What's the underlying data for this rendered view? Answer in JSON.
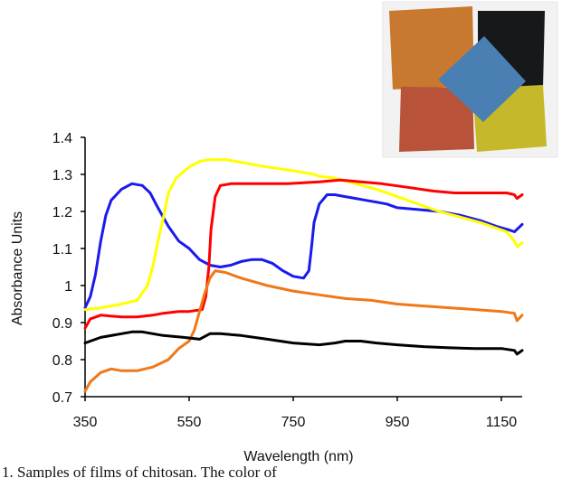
{
  "caption": "1. Samples of films of chitosan. The color of",
  "chart_data": {
    "type": "line",
    "xlabel": "Wavelength (nm)",
    "ylabel": "Absorbance Units",
    "xlim": [
      350,
      1190
    ],
    "ylim": [
      0.7,
      1.4
    ],
    "x_ticks": [
      350,
      550,
      750,
      950,
      1150
    ],
    "y_ticks": [
      0.7,
      0.8,
      0.9,
      1,
      1.1,
      1.2,
      1.3,
      1.4
    ],
    "grid": false,
    "legend": "none",
    "series": [
      {
        "color": "#1a1aee",
        "points": [
          [
            350,
            0.94
          ],
          [
            360,
            0.97
          ],
          [
            370,
            1.03
          ],
          [
            380,
            1.12
          ],
          [
            390,
            1.19
          ],
          [
            400,
            1.23
          ],
          [
            420,
            1.26
          ],
          [
            440,
            1.275
          ],
          [
            460,
            1.27
          ],
          [
            475,
            1.25
          ],
          [
            490,
            1.21
          ],
          [
            510,
            1.16
          ],
          [
            530,
            1.12
          ],
          [
            550,
            1.1
          ],
          [
            570,
            1.07
          ],
          [
            590,
            1.055
          ],
          [
            610,
            1.05
          ],
          [
            630,
            1.055
          ],
          [
            650,
            1.065
          ],
          [
            670,
            1.07
          ],
          [
            690,
            1.07
          ],
          [
            710,
            1.06
          ],
          [
            730,
            1.04
          ],
          [
            750,
            1.025
          ],
          [
            770,
            1.02
          ],
          [
            780,
            1.04
          ],
          [
            785,
            1.1
          ],
          [
            790,
            1.17
          ],
          [
            800,
            1.22
          ],
          [
            815,
            1.245
          ],
          [
            830,
            1.245
          ],
          [
            850,
            1.24
          ],
          [
            870,
            1.235
          ],
          [
            890,
            1.23
          ],
          [
            910,
            1.225
          ],
          [
            930,
            1.22
          ],
          [
            950,
            1.21
          ],
          [
            990,
            1.205
          ],
          [
            1030,
            1.2
          ],
          [
            1070,
            1.19
          ],
          [
            1110,
            1.175
          ],
          [
            1140,
            1.16
          ],
          [
            1165,
            1.15
          ],
          [
            1175,
            1.145
          ],
          [
            1190,
            1.165
          ]
        ]
      },
      {
        "color": "#ffff00",
        "points": [
          [
            350,
            0.935
          ],
          [
            380,
            0.94
          ],
          [
            420,
            0.95
          ],
          [
            450,
            0.96
          ],
          [
            470,
            1.0
          ],
          [
            480,
            1.05
          ],
          [
            490,
            1.12
          ],
          [
            500,
            1.18
          ],
          [
            510,
            1.25
          ],
          [
            525,
            1.29
          ],
          [
            550,
            1.32
          ],
          [
            570,
            1.335
          ],
          [
            590,
            1.34
          ],
          [
            620,
            1.34
          ],
          [
            660,
            1.33
          ],
          [
            700,
            1.32
          ],
          [
            750,
            1.31
          ],
          [
            790,
            1.3
          ],
          [
            800,
            1.295
          ],
          [
            830,
            1.29
          ],
          [
            870,
            1.275
          ],
          [
            910,
            1.26
          ],
          [
            950,
            1.24
          ],
          [
            990,
            1.22
          ],
          [
            1030,
            1.2
          ],
          [
            1070,
            1.185
          ],
          [
            1110,
            1.17
          ],
          [
            1140,
            1.155
          ],
          [
            1160,
            1.145
          ],
          [
            1175,
            1.12
          ],
          [
            1180,
            1.105
          ],
          [
            1190,
            1.115
          ]
        ]
      },
      {
        "color": "#ff0000",
        "points": [
          [
            350,
            0.885
          ],
          [
            360,
            0.91
          ],
          [
            380,
            0.92
          ],
          [
            420,
            0.915
          ],
          [
            450,
            0.915
          ],
          [
            480,
            0.92
          ],
          [
            500,
            0.925
          ],
          [
            530,
            0.93
          ],
          [
            550,
            0.93
          ],
          [
            575,
            0.935
          ],
          [
            582,
            0.97
          ],
          [
            588,
            1.05
          ],
          [
            592,
            1.15
          ],
          [
            600,
            1.24
          ],
          [
            610,
            1.27
          ],
          [
            630,
            1.275
          ],
          [
            680,
            1.275
          ],
          [
            740,
            1.275
          ],
          [
            800,
            1.28
          ],
          [
            840,
            1.285
          ],
          [
            880,
            1.28
          ],
          [
            920,
            1.275
          ],
          [
            970,
            1.265
          ],
          [
            1020,
            1.255
          ],
          [
            1060,
            1.25
          ],
          [
            1100,
            1.25
          ],
          [
            1140,
            1.25
          ],
          [
            1160,
            1.25
          ],
          [
            1175,
            1.245
          ],
          [
            1180,
            1.235
          ],
          [
            1190,
            1.245
          ]
        ]
      },
      {
        "color": "#f07818",
        "points": [
          [
            350,
            0.715
          ],
          [
            360,
            0.74
          ],
          [
            380,
            0.765
          ],
          [
            400,
            0.775
          ],
          [
            420,
            0.77
          ],
          [
            450,
            0.77
          ],
          [
            480,
            0.78
          ],
          [
            510,
            0.8
          ],
          [
            530,
            0.83
          ],
          [
            550,
            0.85
          ],
          [
            560,
            0.88
          ],
          [
            570,
            0.93
          ],
          [
            580,
            0.98
          ],
          [
            590,
            1.02
          ],
          [
            600,
            1.04
          ],
          [
            620,
            1.035
          ],
          [
            650,
            1.02
          ],
          [
            700,
            1.0
          ],
          [
            750,
            0.985
          ],
          [
            800,
            0.975
          ],
          [
            850,
            0.965
          ],
          [
            900,
            0.96
          ],
          [
            950,
            0.95
          ],
          [
            1000,
            0.945
          ],
          [
            1050,
            0.94
          ],
          [
            1100,
            0.935
          ],
          [
            1150,
            0.93
          ],
          [
            1175,
            0.925
          ],
          [
            1180,
            0.905
          ],
          [
            1190,
            0.92
          ]
        ]
      },
      {
        "color": "#000000",
        "points": [
          [
            350,
            0.845
          ],
          [
            380,
            0.86
          ],
          [
            420,
            0.87
          ],
          [
            440,
            0.875
          ],
          [
            460,
            0.875
          ],
          [
            500,
            0.865
          ],
          [
            540,
            0.86
          ],
          [
            570,
            0.855
          ],
          [
            590,
            0.87
          ],
          [
            610,
            0.87
          ],
          [
            650,
            0.865
          ],
          [
            700,
            0.855
          ],
          [
            750,
            0.845
          ],
          [
            800,
            0.84
          ],
          [
            830,
            0.845
          ],
          [
            850,
            0.85
          ],
          [
            880,
            0.85
          ],
          [
            910,
            0.845
          ],
          [
            950,
            0.84
          ],
          [
            1000,
            0.835
          ],
          [
            1050,
            0.832
          ],
          [
            1100,
            0.83
          ],
          [
            1150,
            0.83
          ],
          [
            1175,
            0.825
          ],
          [
            1180,
            0.815
          ],
          [
            1190,
            0.825
          ]
        ]
      }
    ]
  },
  "inset_photo": {
    "colors": {
      "orange_film": "#c97830",
      "black_film": "#16181a",
      "blue_film": "#4a7fb3",
      "red_film": "#b8533a",
      "yellow_film": "#c5b82a",
      "background": "#f2f2f2"
    }
  }
}
